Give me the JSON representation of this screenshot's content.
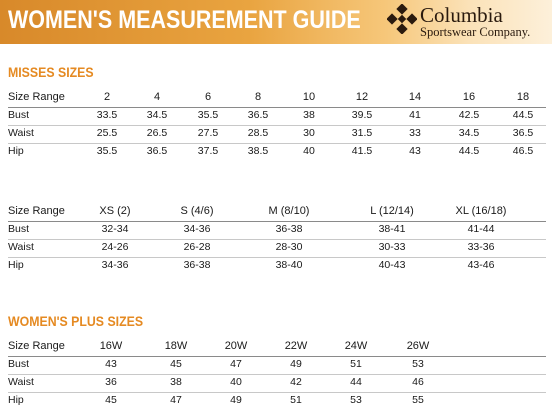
{
  "header": {
    "title": "WOMEN'S MEASUREMENT GUIDE",
    "brand_name": "Columbia",
    "brand_sub": "Sportswear Company.",
    "logo_icon": "columbia-diamond-logo-icon",
    "accent_color": "#e58a22"
  },
  "misses": {
    "title": "MISSES SIZES",
    "header_label": "Size Range",
    "sizes": [
      "2",
      "4",
      "6",
      "8",
      "10",
      "12",
      "14",
      "16",
      "18"
    ],
    "rows": [
      {
        "label": "Bust",
        "values": [
          "33.5",
          "34.5",
          "35.5",
          "36.5",
          "38",
          "39.5",
          "41",
          "42.5",
          "44.5"
        ]
      },
      {
        "label": "Waist",
        "values": [
          "25.5",
          "26.5",
          "27.5",
          "28.5",
          "30",
          "31.5",
          "33",
          "34.5",
          "36.5"
        ]
      },
      {
        "label": "Hip",
        "values": [
          "35.5",
          "36.5",
          "37.5",
          "38.5",
          "40",
          "41.5",
          "43",
          "44.5",
          "46.5"
        ]
      }
    ]
  },
  "alpha": {
    "header_label": "Size Range",
    "sizes": [
      "XS (2)",
      "S (4/6)",
      "M (8/10)",
      "L (12/14)",
      "XL (16/18)"
    ],
    "rows": [
      {
        "label": "Bust",
        "values": [
          "32-34",
          "34-36",
          "36-38",
          "38-41",
          "41-44"
        ]
      },
      {
        "label": "Waist",
        "values": [
          "24-26",
          "26-28",
          "28-30",
          "30-33",
          "33-36"
        ]
      },
      {
        "label": "Hip",
        "values": [
          "34-36",
          "36-38",
          "38-40",
          "40-43",
          "43-46"
        ]
      }
    ]
  },
  "plus": {
    "title": "WOMEN'S PLUS SIZES",
    "header_label": "Size Range",
    "sizes": [
      "16W",
      "18W",
      "20W",
      "22W",
      "24W",
      "26W"
    ],
    "rows": [
      {
        "label": "Bust",
        "values": [
          "43",
          "45",
          "47",
          "49",
          "51",
          "53"
        ]
      },
      {
        "label": "Waist",
        "values": [
          "36",
          "38",
          "40",
          "42",
          "44",
          "46"
        ]
      },
      {
        "label": "Hip",
        "values": [
          "45",
          "47",
          "49",
          "51",
          "53",
          "55"
        ]
      }
    ]
  }
}
